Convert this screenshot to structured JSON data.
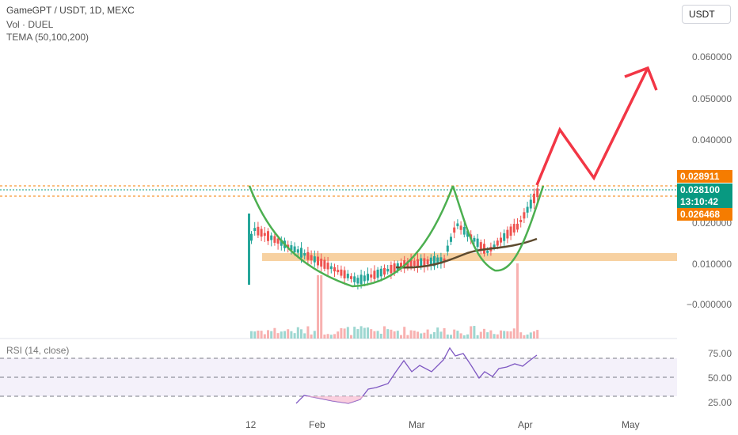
{
  "header": {
    "symbol_line": "GameGPT / USDT, 1D, MEXC",
    "volume_line": "Vol · DUEL",
    "tema_line": "TEMA (50,100,200)"
  },
  "currency_button": "USDT",
  "price_axis": {
    "ticks": [
      "0.060000",
      "0.050000",
      "0.040000",
      "0.020000",
      "0.010000",
      "−0.000000"
    ]
  },
  "price_tags": {
    "high": "0.028911",
    "last": "0.028100",
    "countdown": "13:10:42",
    "low": "0.026468"
  },
  "rsi": {
    "label": "RSI (14, close)",
    "ticks": [
      "75.00",
      "50.00",
      "25.00"
    ]
  },
  "time_axis": [
    "12",
    "Feb",
    "Mar",
    "Apr",
    "May"
  ],
  "colors": {
    "bull": "#26a69a",
    "bear": "#ef5350",
    "pattern": "#4caf50",
    "arrow": "#f23645",
    "support_zone": "#f5c58a",
    "tema": "#5d4a2e",
    "rsi_line": "#7e57c2",
    "high_tag": "#f57c00",
    "last_tag": "#089981",
    "low_tag": "#f57c00"
  }
}
